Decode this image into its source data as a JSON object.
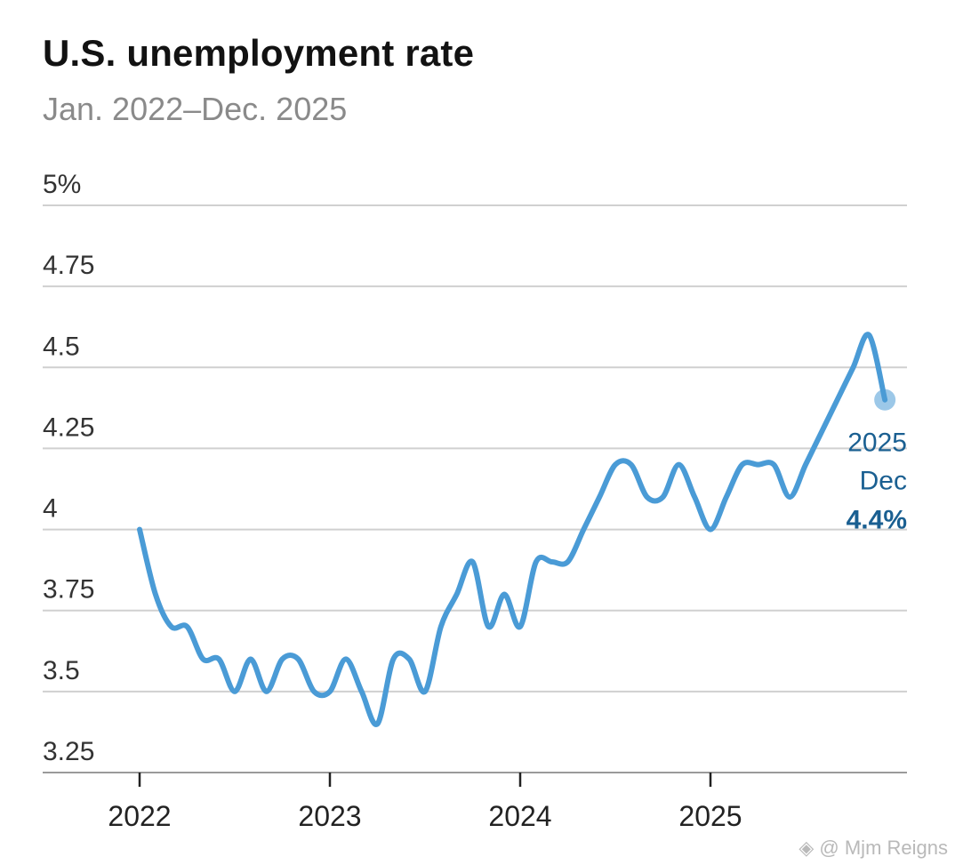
{
  "chart_data": {
    "type": "line",
    "title": "U.S. unemployment rate",
    "subtitle": "Jan. 2022–Dec. 2025",
    "ylabel": "",
    "xlabel": "",
    "ylim": [
      3.25,
      5.0
    ],
    "yticks": [
      3.25,
      3.5,
      3.75,
      4.0,
      4.25,
      4.5,
      4.75,
      5.0
    ],
    "ytick_labels": [
      "3.25",
      "3.5",
      "3.75",
      "4",
      "4.25",
      "4.5",
      "4.75",
      "5%"
    ],
    "xticks": [
      "2022",
      "2023",
      "2024",
      "2025"
    ],
    "grid": true,
    "series": [
      {
        "name": "Unemployment rate",
        "color": "#4a9bd6",
        "x": [
          "2022-01",
          "2022-02",
          "2022-03",
          "2022-04",
          "2022-05",
          "2022-06",
          "2022-07",
          "2022-08",
          "2022-09",
          "2022-10",
          "2022-11",
          "2022-12",
          "2023-01",
          "2023-02",
          "2023-03",
          "2023-04",
          "2023-05",
          "2023-06",
          "2023-07",
          "2023-08",
          "2023-09",
          "2023-10",
          "2023-11",
          "2023-12",
          "2024-01",
          "2024-02",
          "2024-03",
          "2024-04",
          "2024-05",
          "2024-06",
          "2024-07",
          "2024-08",
          "2024-09",
          "2024-10",
          "2024-11",
          "2024-12",
          "2025-01",
          "2025-02",
          "2025-03",
          "2025-04",
          "2025-05",
          "2025-06",
          "2025-07",
          "2025-08",
          "2025-09",
          "2025-10",
          "2025-11",
          "2025-12"
        ],
        "values": [
          4.0,
          3.8,
          3.7,
          3.7,
          3.6,
          3.6,
          3.5,
          3.6,
          3.5,
          3.6,
          3.6,
          3.5,
          3.5,
          3.6,
          3.5,
          3.4,
          3.6,
          3.6,
          3.5,
          3.7,
          3.8,
          3.9,
          3.7,
          3.8,
          3.7,
          3.9,
          3.9,
          3.9,
          4.0,
          4.1,
          4.2,
          4.2,
          4.1,
          4.1,
          4.2,
          4.1,
          4.0,
          4.1,
          4.2,
          4.2,
          4.2,
          4.1,
          4.2,
          4.3,
          4.4,
          4.5,
          4.6,
          4.4
        ]
      }
    ],
    "annotation": {
      "year": "2025",
      "month": "Dec",
      "value_label": "4.4%",
      "color": "#1a5f91"
    }
  },
  "watermark": "@ Mjm Reigns"
}
